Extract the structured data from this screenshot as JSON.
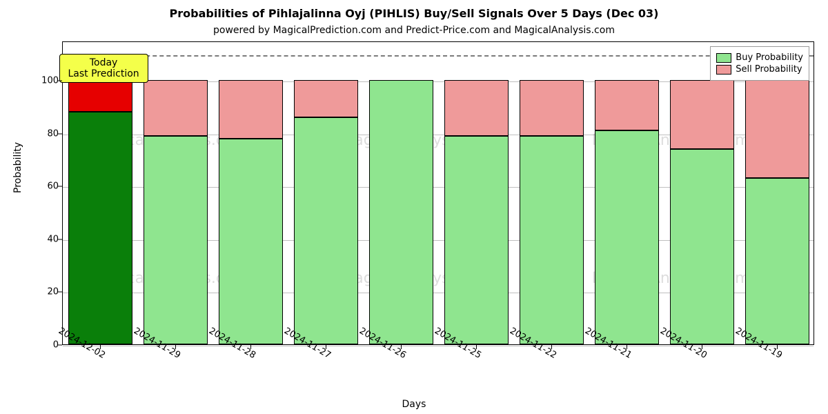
{
  "chart": {
    "type": "stacked-bar",
    "title": "Probabilities of Pihlajalinna Oyj (PIHLIS) Buy/Sell Signals Over 5 Days (Dec 03)",
    "title_fontsize": 16,
    "subtitle": "powered by MagicalPrediction.com and Predict-Price.com and MagicalAnalysis.com",
    "subtitle_fontsize": 14,
    "xlabel": "Days",
    "ylabel": "Probability",
    "label_fontsize": 14,
    "tick_fontsize": 13,
    "background_color": "#ffffff",
    "grid_color": "#bfbfbf",
    "axis_color": "#000000",
    "ylim": [
      0,
      115
    ],
    "ytick_step": 20,
    "yticks": [
      0,
      20,
      40,
      60,
      80,
      100
    ],
    "ceiling_value": 110,
    "ceiling_dash_color": "#7a7a7a",
    "bar_width": 0.85,
    "bar_gap": 0.15,
    "categories": [
      "2024-12-02",
      "2024-11-29",
      "2024-11-28",
      "2024-11-27",
      "2024-11-26",
      "2024-11-25",
      "2024-11-22",
      "2024-11-21",
      "2024-11-20",
      "2024-11-19"
    ],
    "series": {
      "buy": [
        88,
        79,
        78,
        86,
        100,
        79,
        79,
        81,
        74,
        63
      ],
      "sell": [
        12,
        21,
        22,
        14,
        0,
        21,
        21,
        19,
        26,
        37
      ]
    },
    "colors": {
      "buy_normal": "#8fe58f",
      "sell_normal": "#ef9a9a",
      "buy_highlight": "#0a7f0a",
      "sell_highlight": "#e60000"
    },
    "highlight_index": 0,
    "callout": {
      "lines": [
        "Today",
        "Last Prediction"
      ],
      "background_color": "#f4ff4a",
      "border_color": "#000000",
      "fontsize": 14
    },
    "legend": {
      "items": [
        {
          "label": "Buy Probability",
          "color": "#8fe58f"
        },
        {
          "label": "Sell Probability",
          "color": "#ef9a9a"
        }
      ],
      "fontsize": 13,
      "border_color": "#9a9a9a",
      "background_color": "#ffffff"
    },
    "watermark": {
      "text": "MagicalAnalysis.com",
      "color": "rgba(120,120,120,0.25)",
      "fontsize": 22,
      "rows": 2,
      "cols": 3
    }
  }
}
